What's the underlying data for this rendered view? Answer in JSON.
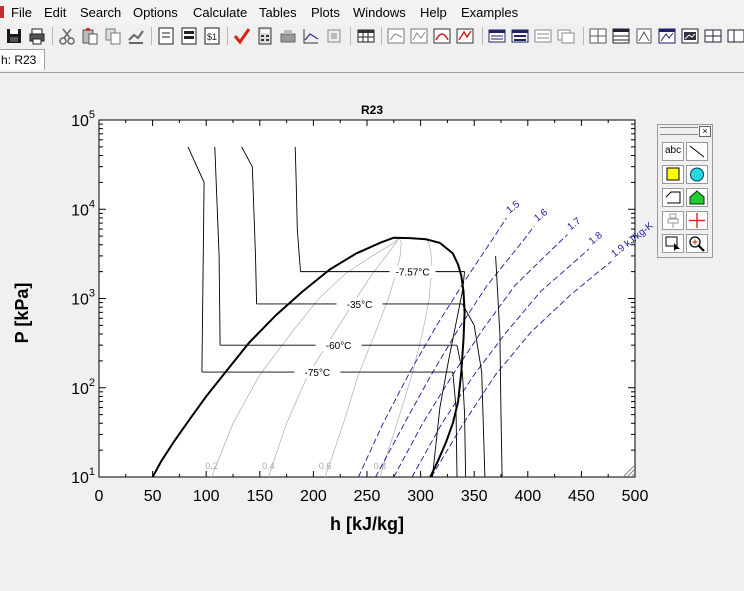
{
  "menu": {
    "items": [
      "File",
      "Edit",
      "Search",
      "Options",
      "Calculate",
      "Tables",
      "Plots",
      "Windows",
      "Help",
      "Examples"
    ]
  },
  "toolbar": {
    "icons": [
      "save-icon",
      "print-icon",
      "cut-icon",
      "paste-icon",
      "copy-icon",
      "format-icon",
      "equations-icon",
      "formatted-equations-icon",
      "solution-icon",
      "check-icon",
      "calculator-icon",
      "storage-icon",
      "plot-icon",
      "plot-overlay-icon",
      "table-icon",
      "new-plot-icon",
      "overlay-plot-icon",
      "property-plot-icon",
      "modify-plot-icon",
      "lookup-table-icon",
      "parametric-table-icon",
      "arrays-icon",
      "integral-table-icon",
      "diagram-window-icon",
      "parametric-window-icon",
      "plot-window-icon",
      "report-icon",
      "help-icon"
    ]
  },
  "tab": {
    "label": "h: R23"
  },
  "palette": {
    "text_label": "abc",
    "close_glyph": "×",
    "tools": [
      "text-tool-icon",
      "line-tool-icon",
      "rectangle-tool-icon",
      "circle-tool-icon",
      "polygon-tool-icon",
      "pentagon-tool-icon",
      "align-tool-icon",
      "crosshair-tool-icon",
      "select-tool-icon",
      "zoom-tool-icon"
    ]
  },
  "chart_data": {
    "type": "line",
    "title": "R23",
    "xlabel": "h [kJ/kg]",
    "ylabel": "P [kPa]",
    "xlim": [
      0,
      500
    ],
    "ylim": [
      10,
      100000
    ],
    "yscale": "log",
    "x_ticks": [
      "0",
      "50",
      "100",
      "150",
      "200",
      "250",
      "300",
      "350",
      "400",
      "450",
      "500"
    ],
    "y_ticks": [
      {
        "base": "10",
        "exp": "1"
      },
      {
        "base": "10",
        "exp": "2"
      },
      {
        "base": "10",
        "exp": "3"
      },
      {
        "base": "10",
        "exp": "4"
      },
      {
        "base": "10",
        "exp": "5"
      }
    ],
    "grid": false,
    "saturation_dome": {
      "x": [
        50,
        58,
        70,
        85,
        100,
        120,
        140,
        165,
        190,
        215,
        240,
        262,
        275,
        290,
        305,
        318,
        330,
        335,
        338,
        340,
        341,
        340,
        338,
        335,
        330,
        324,
        316,
        309
      ],
      "y": [
        10,
        15,
        25,
        45,
        80,
        160,
        320,
        650,
        1200,
        2100,
        3200,
        4200,
        4800,
        4750,
        4600,
        4200,
        3200,
        2400,
        1800,
        1200,
        700,
        350,
        150,
        70,
        40,
        25,
        15,
        10
      ]
    },
    "isotherms": [
      {
        "label": "-7.57°C",
        "liquid_x": 188,
        "vapor_x": 341,
        "p": 2000,
        "liquid_branch": {
          "x": [
            183,
            184,
            185,
            187,
            188
          ],
          "p": [
            50000,
            20000,
            6000,
            2800,
            2000
          ]
        },
        "vapor_branch": {
          "x": [
            341,
            339,
            334,
            326,
            318,
            311
          ],
          "p": [
            2000,
            1200,
            600,
            200,
            60,
            10
          ]
        }
      },
      {
        "label": "-35°C",
        "liquid_x": 147,
        "vapor_x": 339,
        "p": 870,
        "liquid_branch": {
          "x": [
            133,
            143,
            146,
            147
          ],
          "p": [
            50000,
            30000,
            3000,
            870
          ]
        },
        "vapor_branch": {
          "x": [
            339,
            350,
            357,
            360
          ],
          "p": [
            870,
            500,
            150,
            10
          ]
        }
      },
      {
        "label": "-60°C",
        "liquid_x": 113,
        "vapor_x": 334,
        "p": 300,
        "liquid_branch": {
          "x": [
            108,
            112,
            113
          ],
          "p": [
            50000,
            3000,
            300
          ]
        },
        "vapor_branch": {
          "x": [
            334,
            339,
            341,
            342
          ],
          "p": [
            300,
            150,
            50,
            10
          ]
        }
      },
      {
        "label": "-75°C",
        "liquid_x": 96,
        "vapor_x": 330,
        "p": 150,
        "liquid_branch": {
          "x": [
            83,
            98,
            96
          ],
          "p": [
            50000,
            20000,
            150
          ]
        },
        "vapor_branch": {
          "x": [
            330,
            333,
            334
          ],
          "p": [
            150,
            60,
            10
          ]
        }
      },
      {
        "label": "",
        "liquid_x": 0,
        "vapor_x": 0,
        "p": 0,
        "liquid_branch": {
          "x": [],
          "p": []
        },
        "vapor_branch": {
          "x": [
            370,
            374,
            375,
            376
          ],
          "p": [
            3000,
            400,
            50,
            10
          ]
        }
      }
    ],
    "isentropes": [
      {
        "label": "1.5",
        "x": [
          242,
          265,
          290,
          315,
          340,
          370,
          380
        ],
        "p": [
          10,
          40,
          150,
          500,
          1500,
          5200,
          8000
        ]
      },
      {
        "label": "1.6",
        "x": [
          258,
          285,
          310,
          335,
          362,
          396,
          406
        ],
        "p": [
          10,
          40,
          140,
          450,
          1400,
          4500,
          6500
        ]
      },
      {
        "label": "1.7",
        "x": [
          275,
          302,
          330,
          358,
          388,
          427,
          437
        ],
        "p": [
          10,
          40,
          140,
          450,
          1400,
          4000,
          5200
        ]
      },
      {
        "label": "1.8",
        "x": [
          292,
          320,
          350,
          380,
          412,
          447,
          457
        ],
        "p": [
          10,
          40,
          140,
          420,
          1200,
          2800,
          3600
        ]
      },
      {
        "label": "1.9 kJ/kg-K",
        "x": [
          310,
          340,
          370,
          403,
          440,
          466,
          478
        ],
        "p": [
          10,
          40,
          140,
          420,
          1100,
          2000,
          2600
        ]
      }
    ],
    "quality_lines": [
      {
        "label": "0.2",
        "x": [
          105,
          125,
          150,
          180,
          205,
          230,
          255,
          275,
          280
        ],
        "p": [
          10,
          40,
          140,
          420,
          1000,
          1900,
          3000,
          4200,
          4800
        ]
      },
      {
        "label": "0.4",
        "x": [
          158,
          175,
          195,
          220,
          240,
          255,
          268,
          277,
          280
        ],
        "p": [
          10,
          40,
          140,
          420,
          1000,
          1900,
          3000,
          4200,
          4800
        ]
      },
      {
        "label": "0.6",
        "x": [
          211,
          228,
          242,
          258,
          270,
          277,
          281,
          282,
          280
        ],
        "p": [
          10,
          40,
          140,
          420,
          1000,
          1900,
          3000,
          4200,
          4800
        ]
      },
      {
        "label": "0.8",
        "x": [
          262,
          278,
          292,
          302,
          308,
          310,
          310,
          308,
          305
        ],
        "p": [
          10,
          40,
          140,
          420,
          1000,
          1900,
          3000,
          4000,
          4750
        ]
      }
    ]
  }
}
